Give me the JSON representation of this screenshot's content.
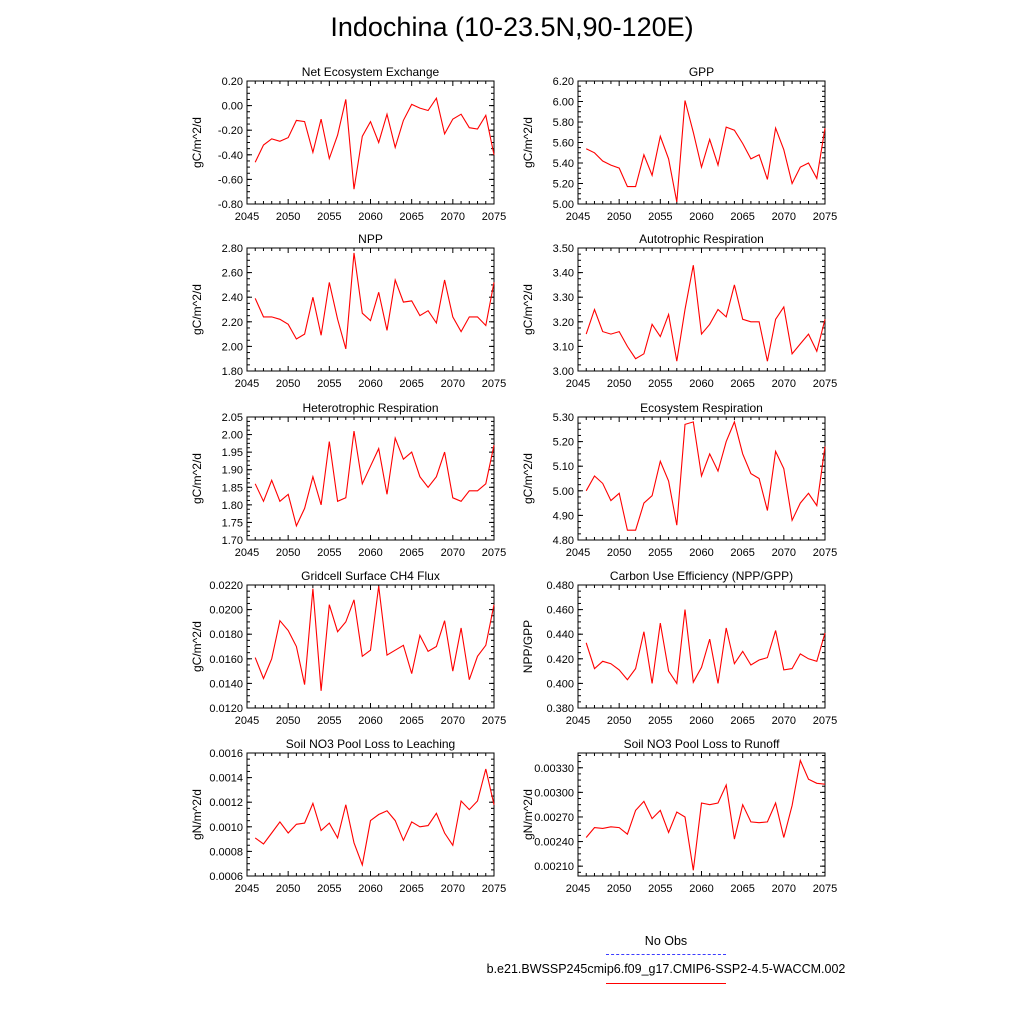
{
  "page": {
    "title": "Indochina (10-23.5N,90-120E)"
  },
  "legend": {
    "items": [
      {
        "label": "No Obs",
        "color": "#3c3cff",
        "style": "dashed"
      },
      {
        "label": "b.e21.BWSSP245cmip6.f09_g17.CMIP6-SSP2-4.5-WACCM.002",
        "color": "#ff0000",
        "style": "solid"
      }
    ]
  },
  "chart_data": [
    {
      "type": "line",
      "title": "Net Ecosystem Exchange",
      "ylabel": "gC/m^2/d",
      "xlabel": "",
      "xlim": [
        2045,
        2075
      ],
      "ylim": [
        -0.8,
        0.2
      ],
      "xticks": [
        2045,
        2050,
        2055,
        2060,
        2065,
        2070,
        2075
      ],
      "yticks": [
        "-0.80",
        "-0.60",
        "-0.40",
        "-0.20",
        "0.00",
        "0.20"
      ],
      "series": [
        {
          "color": "#ff0000",
          "x": [
            2046,
            2047,
            2048,
            2049,
            2050,
            2051,
            2052,
            2053,
            2054,
            2055,
            2056,
            2057,
            2058,
            2059,
            2060,
            2061,
            2062,
            2063,
            2064,
            2065,
            2066,
            2067,
            2068,
            2069,
            2070,
            2071,
            2072,
            2073,
            2074,
            2075
          ],
          "values": [
            -0.46,
            -0.32,
            -0.27,
            -0.29,
            -0.26,
            -0.12,
            -0.13,
            -0.38,
            -0.11,
            -0.43,
            -0.24,
            0.05,
            -0.68,
            -0.25,
            -0.13,
            -0.3,
            -0.07,
            -0.34,
            -0.12,
            0.01,
            -0.02,
            -0.04,
            0.06,
            -0.23,
            -0.11,
            -0.07,
            -0.18,
            -0.19,
            -0.08,
            -0.4
          ]
        }
      ]
    },
    {
      "type": "line",
      "title": "GPP",
      "ylabel": "gC/m^2/d",
      "xlabel": "",
      "xlim": [
        2045,
        2075
      ],
      "ylim": [
        5.0,
        6.2
      ],
      "xticks": [
        2045,
        2050,
        2055,
        2060,
        2065,
        2070,
        2075
      ],
      "yticks": [
        "5.00",
        "5.20",
        "5.40",
        "5.60",
        "5.80",
        "6.00",
        "6.20"
      ],
      "series": [
        {
          "color": "#ff0000",
          "x": [
            2046,
            2047,
            2048,
            2049,
            2050,
            2051,
            2052,
            2053,
            2054,
            2055,
            2056,
            2057,
            2058,
            2059,
            2060,
            2061,
            2062,
            2063,
            2064,
            2065,
            2066,
            2067,
            2068,
            2069,
            2070,
            2071,
            2072,
            2073,
            2074,
            2075
          ],
          "values": [
            5.54,
            5.5,
            5.42,
            5.38,
            5.35,
            5.17,
            5.17,
            5.48,
            5.28,
            5.66,
            5.44,
            5.02,
            6.01,
            5.7,
            5.36,
            5.63,
            5.38,
            5.75,
            5.72,
            5.59,
            5.44,
            5.48,
            5.24,
            5.74,
            5.53,
            5.2,
            5.36,
            5.4,
            5.25,
            5.74
          ]
        }
      ]
    },
    {
      "type": "line",
      "title": "NPP",
      "ylabel": "gC/m^2/d",
      "xlabel": "",
      "xlim": [
        2045,
        2075
      ],
      "ylim": [
        1.8,
        2.8
      ],
      "xticks": [
        2045,
        2050,
        2055,
        2060,
        2065,
        2070,
        2075
      ],
      "yticks": [
        "1.80",
        "2.00",
        "2.20",
        "2.40",
        "2.60",
        "2.80"
      ],
      "series": [
        {
          "color": "#ff0000",
          "x": [
            2046,
            2047,
            2048,
            2049,
            2050,
            2051,
            2052,
            2053,
            2054,
            2055,
            2056,
            2057,
            2058,
            2059,
            2060,
            2061,
            2062,
            2063,
            2064,
            2065,
            2066,
            2067,
            2068,
            2069,
            2070,
            2071,
            2072,
            2073,
            2074,
            2075
          ],
          "values": [
            2.39,
            2.24,
            2.24,
            2.22,
            2.18,
            2.06,
            2.1,
            2.4,
            2.09,
            2.52,
            2.22,
            1.98,
            2.76,
            2.27,
            2.21,
            2.44,
            2.13,
            2.54,
            2.36,
            2.37,
            2.25,
            2.29,
            2.19,
            2.54,
            2.24,
            2.12,
            2.24,
            2.24,
            2.17,
            2.52
          ]
        }
      ]
    },
    {
      "type": "line",
      "title": "Autotrophic Respiration",
      "ylabel": "gC/m^2/d",
      "xlabel": "",
      "xlim": [
        2045,
        2075
      ],
      "ylim": [
        3.0,
        3.5
      ],
      "xticks": [
        2045,
        2050,
        2055,
        2060,
        2065,
        2070,
        2075
      ],
      "yticks": [
        "3.00",
        "3.10",
        "3.20",
        "3.30",
        "3.40",
        "3.50"
      ],
      "series": [
        {
          "color": "#ff0000",
          "x": [
            2046,
            2047,
            2048,
            2049,
            2050,
            2051,
            2052,
            2053,
            2054,
            2055,
            2056,
            2057,
            2058,
            2059,
            2060,
            2061,
            2062,
            2063,
            2064,
            2065,
            2066,
            2067,
            2068,
            2069,
            2070,
            2071,
            2072,
            2073,
            2074,
            2075
          ],
          "values": [
            3.15,
            3.25,
            3.16,
            3.15,
            3.16,
            3.1,
            3.05,
            3.07,
            3.19,
            3.14,
            3.23,
            3.04,
            3.25,
            3.43,
            3.15,
            3.19,
            3.25,
            3.22,
            3.35,
            3.21,
            3.2,
            3.2,
            3.04,
            3.21,
            3.26,
            3.07,
            3.11,
            3.15,
            3.08,
            3.21
          ]
        }
      ]
    },
    {
      "type": "line",
      "title": "Heterotrophic Respiration",
      "ylabel": "gC/m^2/d",
      "xlabel": "",
      "xlim": [
        2045,
        2075
      ],
      "ylim": [
        1.7,
        2.05
      ],
      "xticks": [
        2045,
        2050,
        2055,
        2060,
        2065,
        2070,
        2075
      ],
      "yticks": [
        "1.70",
        "1.75",
        "1.80",
        "1.85",
        "1.90",
        "1.95",
        "2.00",
        "2.05"
      ],
      "series": [
        {
          "color": "#ff0000",
          "x": [
            2046,
            2047,
            2048,
            2049,
            2050,
            2051,
            2052,
            2053,
            2054,
            2055,
            2056,
            2057,
            2058,
            2059,
            2060,
            2061,
            2062,
            2063,
            2064,
            2065,
            2066,
            2067,
            2068,
            2069,
            2070,
            2071,
            2072,
            2073,
            2074,
            2075
          ],
          "values": [
            1.86,
            1.81,
            1.87,
            1.81,
            1.83,
            1.74,
            1.79,
            1.88,
            1.8,
            1.98,
            1.81,
            1.82,
            2.01,
            1.86,
            1.91,
            1.96,
            1.83,
            1.99,
            1.93,
            1.95,
            1.88,
            1.85,
            1.88,
            1.95,
            1.82,
            1.81,
            1.84,
            1.84,
            1.86,
            1.97
          ]
        }
      ]
    },
    {
      "type": "line",
      "title": "Ecosystem Respiration",
      "ylabel": "gC/m^2/d",
      "xlabel": "",
      "xlim": [
        2045,
        2075
      ],
      "ylim": [
        4.8,
        5.3
      ],
      "xticks": [
        2045,
        2050,
        2055,
        2060,
        2065,
        2070,
        2075
      ],
      "yticks": [
        "4.80",
        "4.90",
        "5.00",
        "5.10",
        "5.20",
        "5.30"
      ],
      "series": [
        {
          "color": "#ff0000",
          "x": [
            2046,
            2047,
            2048,
            2049,
            2050,
            2051,
            2052,
            2053,
            2054,
            2055,
            2056,
            2057,
            2058,
            2059,
            2060,
            2061,
            2062,
            2063,
            2064,
            2065,
            2066,
            2067,
            2068,
            2069,
            2070,
            2071,
            2072,
            2073,
            2074,
            2075
          ],
          "values": [
            5.0,
            5.06,
            5.03,
            4.96,
            4.99,
            4.84,
            4.84,
            4.95,
            4.98,
            5.12,
            5.04,
            4.86,
            5.27,
            5.28,
            5.06,
            5.15,
            5.08,
            5.2,
            5.28,
            5.15,
            5.07,
            5.05,
            4.92,
            5.16,
            5.09,
            4.88,
            4.95,
            4.99,
            4.94,
            5.18
          ]
        }
      ]
    },
    {
      "type": "line",
      "title": "Gridcell Surface CH4 Flux",
      "ylabel": "gC/m^2/d",
      "xlabel": "",
      "xlim": [
        2045,
        2075
      ],
      "ylim": [
        0.012,
        0.022
      ],
      "xticks": [
        2045,
        2050,
        2055,
        2060,
        2065,
        2070,
        2075
      ],
      "yticks": [
        "0.0120",
        "0.0140",
        "0.0160",
        "0.0180",
        "0.0200",
        "0.0220"
      ],
      "series": [
        {
          "color": "#ff0000",
          "x": [
            2046,
            2047,
            2048,
            2049,
            2050,
            2051,
            2052,
            2053,
            2054,
            2055,
            2056,
            2057,
            2058,
            2059,
            2060,
            2061,
            2062,
            2063,
            2064,
            2065,
            2066,
            2067,
            2068,
            2069,
            2070,
            2071,
            2072,
            2073,
            2074,
            2075
          ],
          "values": [
            0.0161,
            0.0144,
            0.016,
            0.0191,
            0.0183,
            0.017,
            0.0139,
            0.0217,
            0.0134,
            0.0204,
            0.0182,
            0.019,
            0.0208,
            0.0162,
            0.0167,
            0.0219,
            0.0163,
            0.0167,
            0.0171,
            0.0148,
            0.0179,
            0.0166,
            0.017,
            0.0191,
            0.015,
            0.0185,
            0.0143,
            0.0162,
            0.0171,
            0.0204
          ]
        }
      ]
    },
    {
      "type": "line",
      "title": "Carbon Use Efficiency (NPP/GPP)",
      "ylabel": "NPP/GPP",
      "xlabel": "",
      "xlim": [
        2045,
        2075
      ],
      "ylim": [
        0.38,
        0.48
      ],
      "xticks": [
        2045,
        2050,
        2055,
        2060,
        2065,
        2070,
        2075
      ],
      "yticks": [
        "0.380",
        "0.400",
        "0.420",
        "0.440",
        "0.460",
        "0.480"
      ],
      "series": [
        {
          "color": "#ff0000",
          "x": [
            2046,
            2047,
            2048,
            2049,
            2050,
            2051,
            2052,
            2053,
            2054,
            2055,
            2056,
            2057,
            2058,
            2059,
            2060,
            2061,
            2062,
            2063,
            2064,
            2065,
            2066,
            2067,
            2068,
            2069,
            2070,
            2071,
            2072,
            2073,
            2074,
            2075
          ],
          "values": [
            0.433,
            0.412,
            0.418,
            0.416,
            0.411,
            0.403,
            0.412,
            0.442,
            0.4,
            0.449,
            0.41,
            0.4,
            0.46,
            0.401,
            0.413,
            0.436,
            0.4,
            0.445,
            0.416,
            0.426,
            0.415,
            0.419,
            0.421,
            0.443,
            0.411,
            0.412,
            0.424,
            0.42,
            0.418,
            0.441
          ]
        }
      ]
    },
    {
      "type": "line",
      "title": "Soil NO3 Pool Loss to Leaching",
      "ylabel": "gN/m^2/d",
      "xlabel": "",
      "xlim": [
        2045,
        2075
      ],
      "ylim": [
        0.0006,
        0.0016
      ],
      "xticks": [
        2045,
        2050,
        2055,
        2060,
        2065,
        2070,
        2075
      ],
      "yticks": [
        "0.0006",
        "0.0008",
        "0.0010",
        "0.0012",
        "0.0014",
        "0.0016"
      ],
      "series": [
        {
          "color": "#ff0000",
          "x": [
            2046,
            2047,
            2048,
            2049,
            2050,
            2051,
            2052,
            2053,
            2054,
            2055,
            2056,
            2057,
            2058,
            2059,
            2060,
            2061,
            2062,
            2063,
            2064,
            2065,
            2066,
            2067,
            2068,
            2069,
            2070,
            2071,
            2072,
            2073,
            2074,
            2075
          ],
          "values": [
            0.00091,
            0.00086,
            0.00095,
            0.00104,
            0.00095,
            0.00102,
            0.00103,
            0.00119,
            0.00097,
            0.00103,
            0.00091,
            0.00118,
            0.00087,
            0.00069,
            0.00105,
            0.0011,
            0.00113,
            0.00105,
            0.00089,
            0.00104,
            0.001,
            0.00101,
            0.00111,
            0.00095,
            0.00085,
            0.00121,
            0.00114,
            0.00121,
            0.00147,
            0.00118
          ]
        }
      ]
    },
    {
      "type": "line",
      "title": "Soil NO3 Pool Loss to Runoff",
      "ylabel": "gN/m^2/d",
      "xlabel": "",
      "xlim": [
        2045,
        2075
      ],
      "ylim": [
        0.00198,
        0.00348
      ],
      "xticks": [
        2045,
        2050,
        2055,
        2060,
        2065,
        2070,
        2075
      ],
      "yticks": [
        "0.00210",
        "0.00240",
        "0.00270",
        "0.00300",
        "0.00330"
      ],
      "series": [
        {
          "color": "#ff0000",
          "x": [
            2046,
            2047,
            2048,
            2049,
            2050,
            2051,
            2052,
            2053,
            2054,
            2055,
            2056,
            2057,
            2058,
            2059,
            2060,
            2061,
            2062,
            2063,
            2064,
            2065,
            2066,
            2067,
            2068,
            2069,
            2070,
            2071,
            2072,
            2073,
            2074,
            2075
          ],
          "values": [
            0.00245,
            0.00257,
            0.00256,
            0.00258,
            0.00257,
            0.00249,
            0.00278,
            0.00289,
            0.00268,
            0.00278,
            0.00251,
            0.00276,
            0.0027,
            0.00205,
            0.00287,
            0.00285,
            0.00287,
            0.00309,
            0.00243,
            0.00285,
            0.00264,
            0.00263,
            0.00264,
            0.00287,
            0.00245,
            0.00284,
            0.00339,
            0.00316,
            0.00311,
            0.0031
          ]
        }
      ]
    }
  ]
}
